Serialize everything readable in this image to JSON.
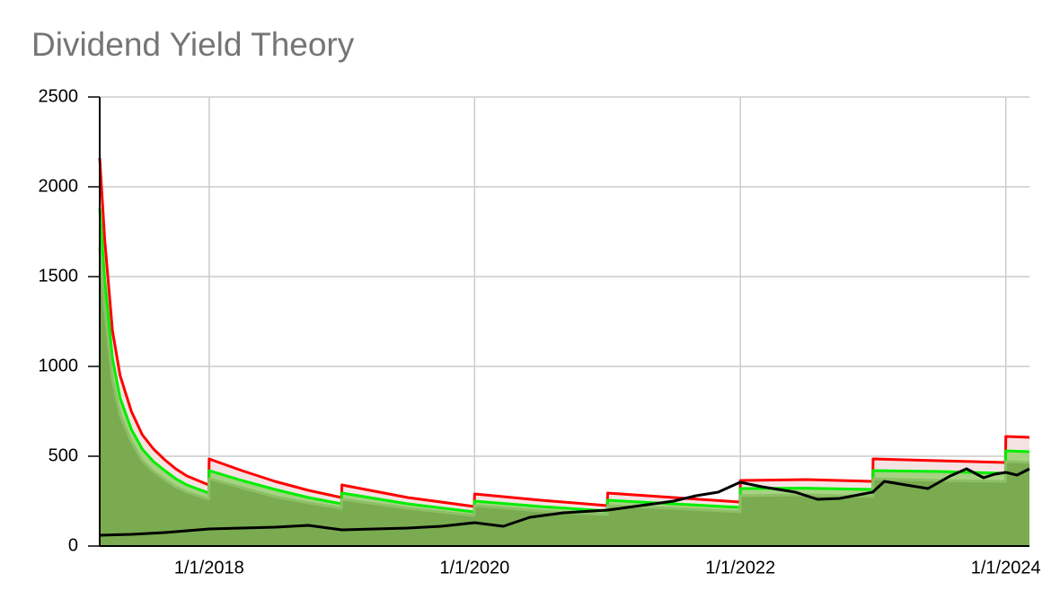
{
  "chart_data": {
    "type": "line",
    "title": "Dividend Yield Theory",
    "xlim": [
      "3/6/2017",
      "3/6/2024"
    ],
    "xticks": [
      "1/1/2018",
      "1/1/2020",
      "1/1/2022",
      "1/1/2024"
    ],
    "ylim": [
      0,
      2500
    ],
    "yticks": [
      0,
      500,
      1000,
      1500,
      2000,
      2500
    ],
    "grid": true,
    "series": [
      {
        "color": "#ff0000",
        "fill": "#f5e3e3",
        "x": [
          "3/6/2017",
          "3/20/2017",
          "4/10/2017",
          "5/1/2017",
          "6/1/2017",
          "7/1/2017",
          "8/1/2017",
          "9/1/2017",
          "10/1/2017",
          "11/1/2017",
          "12/31/2017",
          "1/1/2018",
          "4/1/2018",
          "7/1/2018",
          "10/1/2018",
          "12/31/2018",
          "1/1/2019",
          "7/1/2019",
          "12/31/2019",
          "1/1/2020",
          "7/1/2020",
          "12/31/2020",
          "1/1/2021",
          "7/1/2021",
          "12/31/2021",
          "1/1/2022",
          "7/1/2022",
          "12/31/2022",
          "1/1/2023",
          "7/1/2023",
          "12/31/2023",
          "1/1/2024",
          "3/6/2024"
        ],
        "values": [
          2160,
          1700,
          1200,
          950,
          750,
          620,
          540,
          480,
          430,
          390,
          340,
          485,
          420,
          360,
          310,
          270,
          340,
          270,
          220,
          290,
          255,
          225,
          295,
          270,
          245,
          365,
          370,
          360,
          485,
          475,
          465,
          610,
          605
        ]
      },
      {
        "color": "#00ee00",
        "fill": "#a5d382",
        "x": [
          "3/6/2017",
          "3/20/2017",
          "4/10/2017",
          "5/1/2017",
          "6/1/2017",
          "7/1/2017",
          "8/1/2017",
          "9/1/2017",
          "10/1/2017",
          "11/1/2017",
          "12/31/2017",
          "1/1/2018",
          "4/1/2018",
          "7/1/2018",
          "10/1/2018",
          "12/31/2018",
          "1/1/2019",
          "7/1/2019",
          "12/31/2019",
          "1/1/2020",
          "7/1/2020",
          "12/31/2020",
          "1/1/2021",
          "7/1/2021",
          "12/31/2021",
          "1/1/2022",
          "7/1/2022",
          "12/31/2022",
          "1/1/2023",
          "7/1/2023",
          "12/31/2023",
          "1/1/2024",
          "3/6/2024"
        ],
        "values": [
          1880,
          1480,
          1045,
          825,
          650,
          540,
          470,
          420,
          375,
          340,
          295,
          420,
          365,
          315,
          270,
          235,
          295,
          235,
          190,
          250,
          220,
          195,
          255,
          235,
          215,
          320,
          322,
          315,
          420,
          415,
          405,
          530,
          525
        ]
      },
      {
        "color": "#8cbf66",
        "fill": "#7aab50",
        "x": [
          "3/6/2017",
          "3/20/2017",
          "4/10/2017",
          "5/1/2017",
          "6/1/2017",
          "7/1/2017",
          "8/1/2017",
          "9/1/2017",
          "10/1/2017",
          "11/1/2017",
          "12/31/2017",
          "1/1/2018",
          "4/1/2018",
          "7/1/2018",
          "10/1/2018",
          "12/31/2018",
          "1/1/2019",
          "7/1/2019",
          "12/31/2019",
          "1/1/2020",
          "7/1/2020",
          "12/31/2020",
          "1/1/2021",
          "7/1/2021",
          "12/31/2021",
          "1/1/2022",
          "7/1/2022",
          "12/31/2022",
          "1/1/2023",
          "7/1/2023",
          "12/31/2023",
          "1/1/2024",
          "3/6/2024"
        ],
        "values": [
          1660,
          1310,
          925,
          730,
          580,
          475,
          415,
          370,
          330,
          300,
          260,
          375,
          325,
          275,
          240,
          210,
          260,
          210,
          170,
          225,
          195,
          175,
          225,
          210,
          190,
          280,
          285,
          275,
          375,
          365,
          360,
          470,
          465
        ]
      },
      {
        "color": "#000000",
        "x": [
          "3/6/2017",
          "6/1/2017",
          "9/1/2017",
          "1/1/2018",
          "4/1/2018",
          "7/1/2018",
          "10/1/2018",
          "1/1/2019",
          "4/1/2019",
          "7/1/2019",
          "10/1/2019",
          "1/1/2020",
          "3/20/2020",
          "6/1/2020",
          "9/1/2020",
          "1/1/2021",
          "4/1/2021",
          "7/1/2021",
          "9/1/2021",
          "11/1/2021",
          "12/31/2021",
          "3/1/2022",
          "6/1/2022",
          "8/1/2022",
          "10/1/2022",
          "12/31/2022",
          "2/1/2023",
          "4/1/2023",
          "6/1/2023",
          "8/1/2023",
          "9/15/2023",
          "11/1/2023",
          "12/1/2023",
          "1/1/2024",
          "2/1/2024",
          "3/6/2024"
        ],
        "values": [
          60,
          65,
          75,
          95,
          100,
          105,
          115,
          90,
          95,
          100,
          110,
          130,
          110,
          160,
          185,
          200,
          225,
          250,
          280,
          300,
          355,
          330,
          300,
          260,
          265,
          300,
          360,
          340,
          320,
          390,
          430,
          380,
          400,
          410,
          395,
          430
        ]
      }
    ]
  }
}
